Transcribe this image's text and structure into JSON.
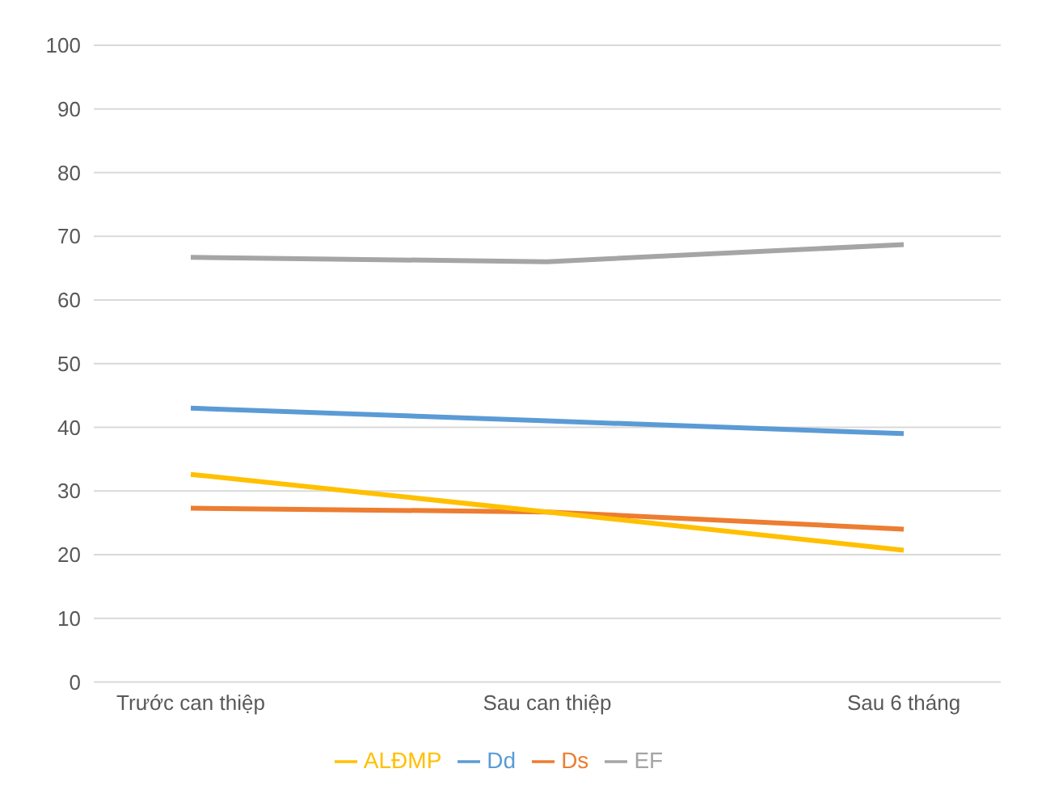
{
  "chart_data": {
    "type": "line",
    "categories": [
      "Trước can thiệp",
      "Sau can thiệp",
      "Sau 6 tháng"
    ],
    "series": [
      {
        "name": "Dd",
        "color": "#5b9bd5",
        "values": [
          43,
          41,
          39
        ]
      },
      {
        "name": "Ds",
        "color": "#ed7d31",
        "values": [
          27.3,
          26.7,
          24
        ]
      },
      {
        "name": "EF",
        "color": "#a5a5a5",
        "values": [
          66.7,
          66,
          68.7
        ]
      },
      {
        "name": "ALĐMP",
        "color": "#ffc000",
        "values": [
          32.6,
          26.7,
          20.7
        ]
      }
    ],
    "ylim": [
      0,
      100
    ],
    "yticks": [
      0,
      10,
      20,
      30,
      40,
      50,
      60,
      70,
      80,
      90,
      100
    ],
    "grid": "y",
    "legend": "bottom",
    "marker": "none"
  }
}
